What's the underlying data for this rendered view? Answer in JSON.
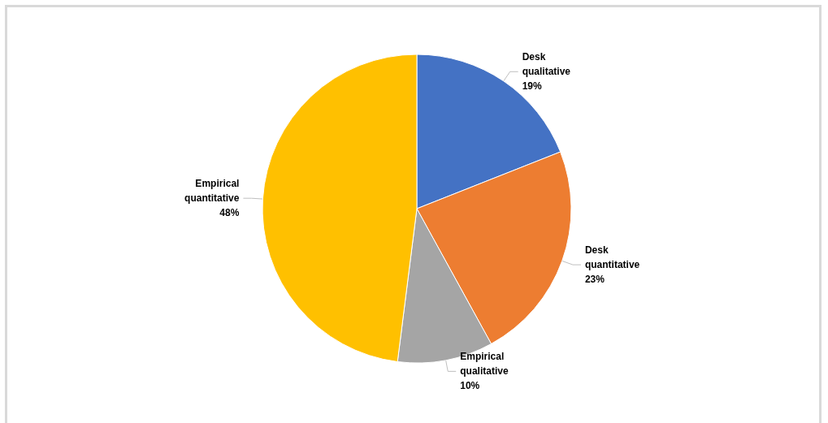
{
  "chart_data": {
    "type": "pie",
    "categories": [
      "Desk qualitative",
      "Desk quantitative",
      "Empirical qualitative",
      "Empirical quantitative"
    ],
    "values": [
      19,
      23,
      10,
      48
    ],
    "colors": [
      "#4472c4",
      "#ed7d31",
      "#a5a5a5",
      "#ffc000"
    ],
    "value_labels": [
      "19%",
      "23%",
      "10%",
      "48%"
    ]
  }
}
